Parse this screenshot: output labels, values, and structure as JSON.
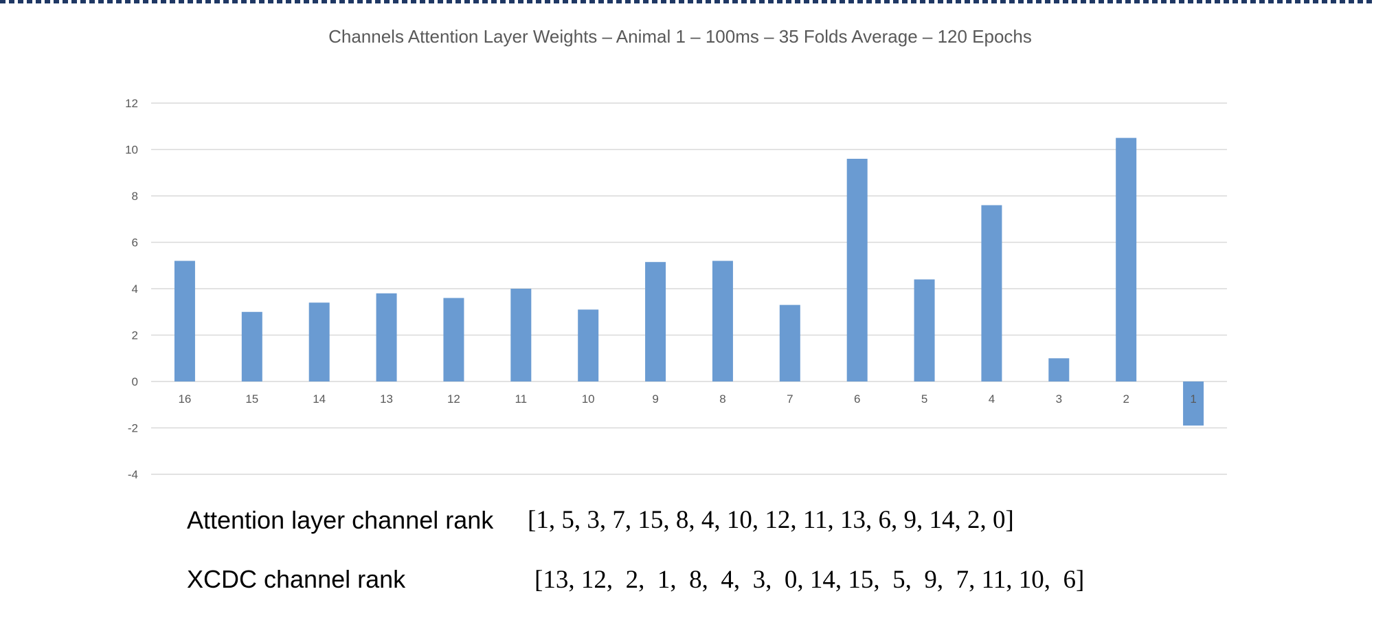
{
  "chart_data": {
    "type": "bar",
    "title": "Channels Attention Layer Weights – Animal 1 – 100ms – 35 Folds Average – 120 Epochs",
    "xlabel": "",
    "ylabel": "",
    "categories": [
      "16",
      "15",
      "14",
      "13",
      "12",
      "11",
      "10",
      "9",
      "8",
      "7",
      "6",
      "5",
      "4",
      "3",
      "2",
      "1"
    ],
    "values": [
      5.2,
      3.0,
      3.4,
      3.8,
      3.6,
      4.0,
      3.1,
      5.15,
      5.2,
      3.3,
      9.6,
      4.4,
      7.6,
      1.0,
      10.5,
      -1.9
    ],
    "ylim": [
      -4,
      12
    ],
    "yticks": [
      "12",
      "10",
      "8",
      "6",
      "4",
      "2",
      "0",
      "-2",
      "-4"
    ],
    "grid": true,
    "legend": "none",
    "bar_color": "#6a9bd2"
  },
  "ranks": {
    "attention_label": "Attention layer channel rank",
    "attention_values": "[1, 5, 3, 7, 15, 8, 4, 10, 12, 11, 13, 6, 9, 14, 2, 0]",
    "xcdc_label": "XCDC channel rank",
    "xcdc_values": "[13, 12,  2,  1,  8,  4,  3,  0, 14, 15,  5,  9,  7, 11, 10,  6]"
  }
}
